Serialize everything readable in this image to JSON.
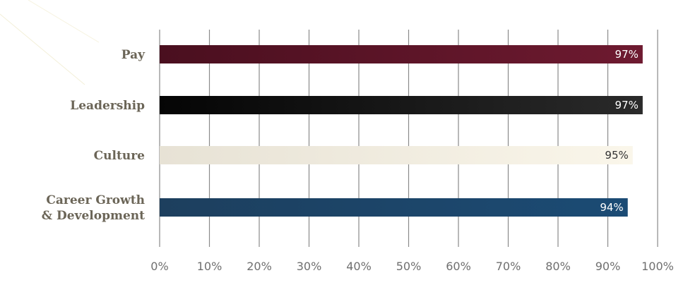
{
  "chart_data": {
    "type": "bar",
    "orientation": "horizontal",
    "categories": [
      "Pay",
      "Leadership",
      "Culture",
      "Career Growth\n& Development"
    ],
    "values": [
      97,
      97,
      95,
      94
    ],
    "value_labels": [
      "97%",
      "97%",
      "95%",
      "94%"
    ],
    "xlim": [
      0,
      100
    ],
    "xticks": [
      "0%",
      "10%",
      "20%",
      "30%",
      "40%",
      "50%",
      "60%",
      "70%",
      "80%",
      "90%",
      "100%"
    ],
    "grid": "vertical",
    "title": "",
    "xlabel": "",
    "ylabel": "",
    "colors": {
      "bars": [
        [
          "#4a0f1f",
          "#6e1a30"
        ],
        [
          "#050505",
          "#2a2a2a"
        ],
        [
          "#e7e2d5",
          "#faf6ea"
        ],
        [
          "#1d3f5e",
          "#1b4b74"
        ]
      ],
      "value_text": [
        "#ffffff",
        "#ffffff",
        "#333333",
        "#ffffff"
      ],
      "gridline": "#8a8a8a",
      "category_text": "#6b6557",
      "tick_text": "#6f6f6f"
    }
  }
}
